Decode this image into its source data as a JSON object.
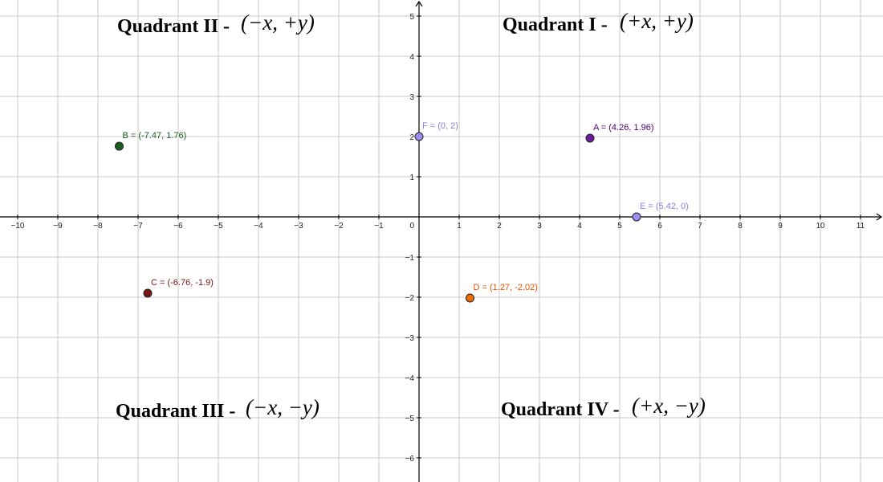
{
  "chart_data": {
    "type": "scatter",
    "xlim": [
      -10.5,
      11.5
    ],
    "ylim": [
      -6.6,
      5.4
    ],
    "grid": true,
    "x_ticks": [
      -10,
      -9,
      -8,
      -7,
      -6,
      -5,
      -4,
      -3,
      -2,
      -1,
      1,
      2,
      3,
      4,
      5,
      6,
      7,
      8,
      9,
      10,
      11
    ],
    "y_ticks": [
      -6,
      -5,
      -4,
      -3,
      -2,
      -1,
      1,
      2,
      3,
      4,
      5
    ],
    "origin_label": "0",
    "points": [
      {
        "name": "A",
        "x": 4.26,
        "y": 1.96,
        "label": "A = (4.26, 1.96)",
        "color": "#6a1b9a",
        "text_color": "#4a0072"
      },
      {
        "name": "B",
        "x": -7.47,
        "y": 1.76,
        "label": "B = (-7.47, 1.76)",
        "color": "#1b5e20",
        "text_color": "#1b5e20"
      },
      {
        "name": "C",
        "x": -6.76,
        "y": -1.9,
        "label": "C = (-6.76, -1.9)",
        "color": "#7b1414",
        "text_color": "#7b1414"
      },
      {
        "name": "D",
        "x": 1.27,
        "y": -2.02,
        "label": "D = (1.27, -2.02)",
        "color": "#ef6c00",
        "text_color": "#e65100"
      },
      {
        "name": "E",
        "x": 5.42,
        "y": 0,
        "label": "E = (5.42, 0)",
        "color": "#9a8ef0",
        "text_color": "#8a7ee0"
      },
      {
        "name": "F",
        "x": 0,
        "y": 2,
        "label": "F = (0, 2)",
        "color": "#9a8ef0",
        "text_color": "#8a7ee0"
      }
    ],
    "annotations": [
      {
        "id": "q1",
        "title": "Quadrant I -",
        "formula": "(+x, +y)"
      },
      {
        "id": "q2",
        "title": "Quadrant II -",
        "formula": "(−x, +y)"
      },
      {
        "id": "q3",
        "title": "Quadrant III -",
        "formula": "(−x, −y)"
      },
      {
        "id": "q4",
        "title": "Quadrant IV -",
        "formula": "(+x, −y)"
      }
    ]
  }
}
